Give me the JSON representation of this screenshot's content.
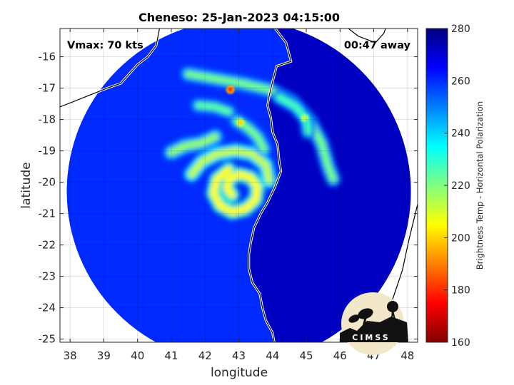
{
  "chart_data": {
    "type": "heatmap",
    "title": "Cheneso: 25-Jan-2023 04:15:00",
    "xlabel": "longitude",
    "ylabel": "latitude",
    "xlim": [
      37.7,
      48.3
    ],
    "ylim": [
      -25.1,
      -15.1
    ],
    "xticks": [
      "38",
      "39",
      "40",
      "41",
      "42",
      "43",
      "44",
      "45",
      "46",
      "47",
      "48"
    ],
    "yticks": [
      "-16",
      "-17",
      "-18",
      "-19",
      "-20",
      "-21",
      "-22",
      "-23",
      "-24",
      "-25"
    ],
    "grid": true,
    "annotations": {
      "vmax": "Vmax: 70 kts",
      "time_away": "00:47 away"
    },
    "storm_center": {
      "lon": 43.0,
      "lat": -20.3
    },
    "scan_radius_deg": 5.1,
    "colorbar": {
      "label": "Brightness Temp - Horizontal Polarization",
      "range": [
        160,
        280
      ],
      "ticks": [
        "280",
        "260",
        "240",
        "220",
        "200",
        "180",
        "160"
      ],
      "colormap": "jet"
    },
    "bands": [
      {
        "name": "eye-wall",
        "temp": 205,
        "points": [
          [
            42.8,
            -20.4
          ],
          [
            42.65,
            -20.2
          ],
          [
            42.7,
            -19.9
          ],
          [
            43.0,
            -19.75
          ],
          [
            43.35,
            -19.85
          ],
          [
            43.55,
            -20.15
          ],
          [
            43.5,
            -20.55
          ],
          [
            43.2,
            -20.85
          ],
          [
            42.8,
            -20.95
          ],
          [
            42.45,
            -20.75
          ],
          [
            42.25,
            -20.35
          ],
          [
            42.35,
            -19.9
          ],
          [
            42.7,
            -19.6
          ]
        ]
      },
      {
        "name": "inner-arc",
        "temp": 212,
        "points": [
          [
            41.6,
            -19.75
          ],
          [
            41.9,
            -19.35
          ],
          [
            42.35,
            -19.1
          ],
          [
            42.9,
            -19.0
          ],
          [
            43.4,
            -19.1
          ],
          [
            43.8,
            -19.45
          ],
          [
            43.9,
            -19.95
          ]
        ]
      },
      {
        "name": "middle-band",
        "temp": 218,
        "points": [
          [
            41.0,
            -19.05
          ],
          [
            41.4,
            -18.85
          ],
          [
            41.9,
            -18.75
          ],
          [
            42.3,
            -18.55
          ]
        ]
      },
      {
        "name": "convective-cell",
        "temp": 222,
        "points": [
          [
            42.95,
            -18.05
          ],
          [
            43.25,
            -18.25
          ],
          [
            43.55,
            -18.55
          ],
          [
            43.75,
            -18.95
          ]
        ]
      },
      {
        "name": "outer-arc",
        "temp": 222,
        "points": [
          [
            41.5,
            -16.55
          ],
          [
            42.3,
            -16.7
          ],
          [
            43.1,
            -16.85
          ],
          [
            43.9,
            -17.05
          ],
          [
            44.6,
            -17.45
          ],
          [
            45.1,
            -18.05
          ],
          [
            45.45,
            -18.75
          ],
          [
            45.65,
            -19.5
          ],
          [
            45.8,
            -19.9
          ]
        ]
      },
      {
        "name": "upper-band",
        "temp": 225,
        "points": [
          [
            41.8,
            -17.55
          ],
          [
            42.3,
            -17.6
          ],
          [
            42.7,
            -17.75
          ]
        ]
      },
      {
        "name": "east-band",
        "temp": 228,
        "points": [
          [
            44.2,
            -17.3
          ],
          [
            44.7,
            -17.6
          ],
          [
            45.0,
            -18.0
          ],
          [
            45.05,
            -18.4
          ]
        ]
      }
    ],
    "hotspots": [
      {
        "lon": 42.75,
        "lat": -17.05,
        "temp": 180
      },
      {
        "lon": 43.05,
        "lat": -18.1,
        "temp": 200
      },
      {
        "lon": 44.95,
        "lat": -17.95,
        "temp": 210
      }
    ],
    "coastlines": [
      {
        "name": "madagascar-west-coast",
        "points": [
          [
            44.08,
            -15.1
          ],
          [
            44.4,
            -15.55
          ],
          [
            44.55,
            -16.15
          ],
          [
            44.12,
            -16.3
          ],
          [
            44.0,
            -16.8
          ],
          [
            43.9,
            -17.25
          ],
          [
            43.85,
            -17.55
          ],
          [
            43.95,
            -17.95
          ],
          [
            44.0,
            -18.4
          ],
          [
            44.15,
            -18.8
          ],
          [
            44.2,
            -19.35
          ],
          [
            44.25,
            -19.65
          ],
          [
            44.05,
            -20.2
          ],
          [
            43.85,
            -20.65
          ],
          [
            43.65,
            -21.0
          ],
          [
            43.45,
            -21.45
          ],
          [
            43.35,
            -21.95
          ],
          [
            43.3,
            -22.3
          ],
          [
            43.3,
            -22.75
          ],
          [
            43.4,
            -23.2
          ],
          [
            43.62,
            -23.55
          ],
          [
            43.7,
            -24.0
          ],
          [
            43.8,
            -24.4
          ],
          [
            44.0,
            -24.8
          ],
          [
            44.05,
            -25.1
          ]
        ]
      },
      {
        "name": "madagascar-north-coast",
        "points": [
          [
            46.25,
            -15.1
          ],
          [
            46.55,
            -15.35
          ],
          [
            47.05,
            -15.55
          ],
          [
            47.3,
            -15.25
          ],
          [
            47.35,
            -15.1
          ]
        ]
      },
      {
        "name": "madagascar-east-coast",
        "points": [
          [
            48.3,
            -20.7
          ],
          [
            48.05,
            -21.8
          ],
          [
            47.85,
            -22.8
          ],
          [
            47.6,
            -23.6
          ],
          [
            47.35,
            -24.35
          ],
          [
            47.15,
            -25.1
          ]
        ]
      },
      {
        "name": "mozambique-coast",
        "points": [
          [
            37.7,
            -17.6
          ],
          [
            38.4,
            -17.3
          ],
          [
            39.1,
            -17.0
          ],
          [
            39.5,
            -16.85
          ],
          [
            40.0,
            -16.25
          ],
          [
            40.3,
            -16.0
          ],
          [
            40.55,
            -15.65
          ],
          [
            40.65,
            -15.1
          ]
        ]
      }
    ],
    "background_temps": {
      "scan": 260,
      "land": 272
    }
  },
  "logo": {
    "text": "CIMSS"
  }
}
